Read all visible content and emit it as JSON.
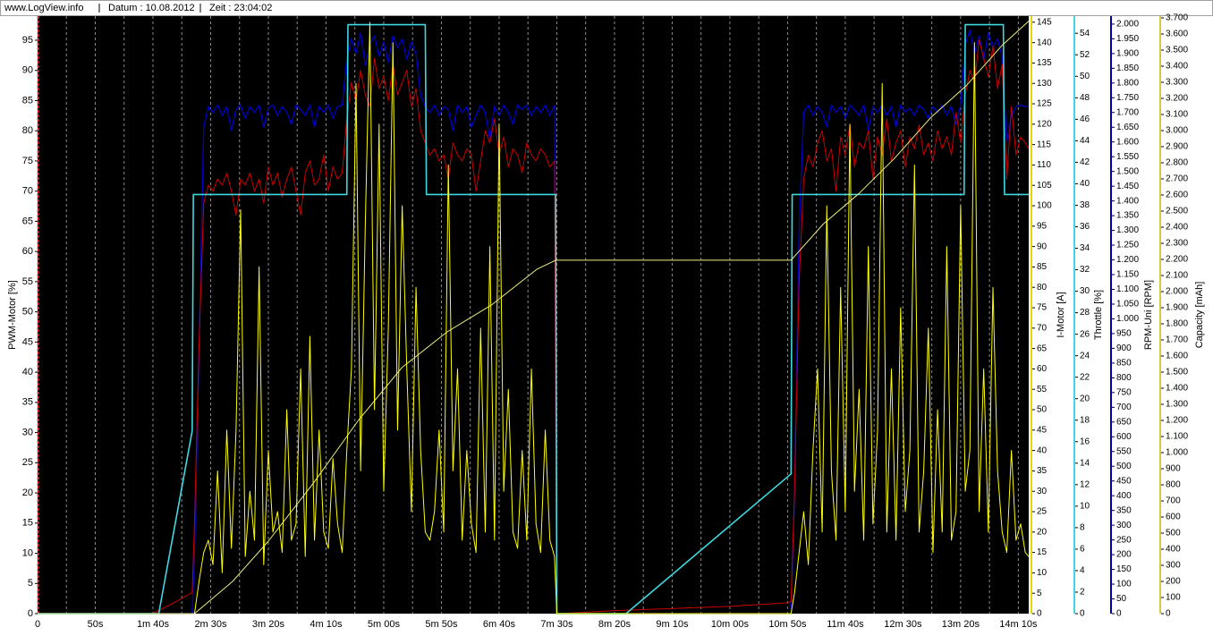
{
  "header": {
    "site": "www.LogView.info",
    "date": "Datum : 10.08.2012",
    "time": "Zeit : 23:04:02"
  },
  "chart_data": {
    "type": "line",
    "grid": true,
    "xlim": [
      0,
      859
    ],
    "xticks": [
      0,
      {
        "value": 50,
        "label": "50s"
      },
      {
        "value": 100,
        "label": "1m 40s"
      },
      {
        "value": 150,
        "label": "2m 30s"
      },
      {
        "value": 200,
        "label": "3m 20s"
      },
      {
        "value": 250,
        "label": "4m 10s"
      },
      {
        "value": 300,
        "label": "5m 00s"
      },
      {
        "value": 350,
        "label": "5m 50s"
      },
      {
        "value": 400,
        "label": "6m 40s"
      },
      {
        "value": 450,
        "label": "7m 30s"
      },
      {
        "value": 500,
        "label": "8m 20s"
      },
      {
        "value": 550,
        "label": "9m 10s"
      },
      {
        "value": 600,
        "label": "10m 00s"
      },
      {
        "value": 650,
        "label": "10m 50s"
      },
      {
        "value": 700,
        "label": "11m 40s"
      },
      {
        "value": 750,
        "label": "12m 30s"
      },
      {
        "value": 800,
        "label": "13m 20s"
      },
      {
        "value": 850,
        "label": "14m 10s"
      }
    ],
    "x_minor_grid": [
      25,
      75,
      125,
      175,
      225,
      275,
      325,
      375,
      425,
      475,
      525,
      575,
      625,
      675,
      725,
      775,
      825
    ],
    "y_axes": [
      {
        "label": "PWM-Motor [%]",
        "side": "left",
        "color": "#cc0000",
        "lim": [
          0,
          99
        ],
        "ticks": [
          0,
          5,
          10,
          15,
          20,
          25,
          30,
          35,
          40,
          45,
          50,
          55,
          60,
          65,
          70,
          75,
          80,
          85,
          90,
          95
        ]
      },
      {
        "label": "I-Motor [A]",
        "side": "right",
        "color": "#e8d800",
        "lim": [
          0,
          146.5
        ],
        "ticks": [
          0,
          5,
          10,
          15,
          20,
          25,
          30,
          35,
          40,
          45,
          50,
          55,
          60,
          65,
          70,
          75,
          80,
          85,
          90,
          95,
          100,
          105,
          110,
          115,
          120,
          125,
          130,
          135,
          140,
          145
        ]
      },
      {
        "label": "Throttle [%]",
        "side": "right",
        "color": "#40d8e0",
        "lim": [
          0,
          55.6
        ],
        "ticks": [
          0,
          2,
          4,
          6,
          8,
          10,
          12,
          14,
          16,
          18,
          20,
          22,
          24,
          26,
          28,
          30,
          32,
          34,
          36,
          38,
          40,
          42,
          44,
          46,
          48,
          50,
          52,
          54
        ]
      },
      {
        "label": "RPM-Uni [RPM]",
        "side": "right",
        "color": "#0000b0",
        "lim": [
          0,
          2027
        ],
        "ticks": [
          0,
          50,
          100,
          150,
          200,
          250,
          300,
          350,
          400,
          450,
          500,
          550,
          600,
          650,
          700,
          750,
          800,
          850,
          900,
          950,
          {
            "value": 1000,
            "label": "1.000"
          },
          {
            "value": 1050,
            "label": "1.050"
          },
          {
            "value": 1100,
            "label": "1.100"
          },
          {
            "value": 1150,
            "label": "1.150"
          },
          {
            "value": 1200,
            "label": "1.200"
          },
          {
            "value": 1250,
            "label": "1.250"
          },
          {
            "value": 1300,
            "label": "1.300"
          },
          {
            "value": 1350,
            "label": "1.350"
          },
          {
            "value": 1400,
            "label": "1.400"
          },
          {
            "value": 1450,
            "label": "1.450"
          },
          {
            "value": 1500,
            "label": "1.500"
          },
          {
            "value": 1550,
            "label": "1.550"
          },
          {
            "value": 1600,
            "label": "1.600"
          },
          {
            "value": 1650,
            "label": "1.650"
          },
          {
            "value": 1700,
            "label": "1.700"
          },
          {
            "value": 1750,
            "label": "1.750"
          },
          {
            "value": 1800,
            "label": "1.800"
          },
          {
            "value": 1850,
            "label": "1.850"
          },
          {
            "value": 1900,
            "label": "1.900"
          },
          {
            "value": 1950,
            "label": "1.950"
          },
          {
            "value": 2000,
            "label": "2.000"
          }
        ]
      },
      {
        "label": "Capacity [mAh]",
        "side": "right",
        "color": "#d8c840",
        "lim": [
          0,
          3711
        ],
        "ticks": [
          0,
          100,
          200,
          300,
          400,
          500,
          600,
          700,
          800,
          900,
          {
            "value": 1000,
            "label": "1.000"
          },
          {
            "value": 1100,
            "label": "1.100"
          },
          {
            "value": 1200,
            "label": "1.200"
          },
          {
            "value": 1300,
            "label": "1.300"
          },
          {
            "value": 1400,
            "label": "1.400"
          },
          {
            "value": 1500,
            "label": "1.500"
          },
          {
            "value": 1600,
            "label": "1.600"
          },
          {
            "value": 1700,
            "label": "1.700"
          },
          {
            "value": 1800,
            "label": "1.800"
          },
          {
            "value": 1900,
            "label": "1.900"
          },
          {
            "value": 2000,
            "label": "2.000"
          },
          {
            "value": 2100,
            "label": "2.100"
          },
          {
            "value": 2200,
            "label": "2.200"
          },
          {
            "value": 2300,
            "label": "2.300"
          },
          {
            "value": 2400,
            "label": "2.400"
          },
          {
            "value": 2500,
            "label": "2.500"
          },
          {
            "value": 2600,
            "label": "2.600"
          },
          {
            "value": 2700,
            "label": "2.700"
          },
          {
            "value": 2800,
            "label": "2.800"
          },
          {
            "value": 2900,
            "label": "2.900"
          },
          {
            "value": 3000,
            "label": "3.000"
          },
          {
            "value": 3100,
            "label": "3.100"
          },
          {
            "value": 3200,
            "label": "3.200"
          },
          {
            "value": 3300,
            "label": "3.300"
          },
          {
            "value": 3400,
            "label": "3.400"
          },
          {
            "value": 3500,
            "label": "3.500"
          },
          {
            "value": 3600,
            "label": "3.600"
          },
          {
            "value": 3700,
            "label": "3.700"
          }
        ]
      }
    ],
    "x": [
      0,
      100,
      105,
      120,
      134,
      136,
      140,
      144,
      148,
      152,
      156,
      160,
      164,
      168,
      172,
      176,
      180,
      184,
      188,
      192,
      196,
      200,
      204,
      208,
      212,
      216,
      220,
      224,
      228,
      232,
      236,
      240,
      244,
      248,
      252,
      256,
      260,
      264,
      268,
      272,
      276,
      280,
      284,
      288,
      292,
      296,
      300,
      304,
      308,
      312,
      316,
      320,
      324,
      328,
      332,
      336,
      340,
      344,
      348,
      352,
      356,
      360,
      364,
      368,
      372,
      376,
      380,
      384,
      388,
      392,
      396,
      400,
      404,
      408,
      412,
      416,
      420,
      424,
      428,
      432,
      436,
      440,
      444,
      448,
      450,
      452,
      500,
      600,
      650,
      653,
      656,
      660,
      664,
      668,
      672,
      676,
      680,
      684,
      688,
      692,
      696,
      700,
      704,
      708,
      712,
      716,
      720,
      724,
      728,
      732,
      736,
      740,
      744,
      748,
      752,
      756,
      760,
      764,
      768,
      772,
      776,
      780,
      784,
      788,
      792,
      796,
      800,
      804,
      808,
      812,
      816,
      820,
      824,
      828,
      832,
      836,
      840,
      844,
      848,
      852,
      856,
      859
    ],
    "series": [
      {
        "axis": 3,
        "color": "#0000c8",
        "values": [
          0,
          0,
          0,
          0,
          0,
          200,
          900,
          1650,
          1720,
          1700,
          1725,
          1690,
          1720,
          1640,
          1710,
          1725,
          1680,
          1720,
          1700,
          1725,
          1650,
          1715,
          1725,
          1690,
          1720,
          1700,
          1660,
          1725,
          1710,
          1690,
          1725,
          1650,
          1720,
          1700,
          1725,
          1680,
          1720,
          1725,
          1880,
          1950,
          1900,
          1970,
          1860,
          1930,
          1960,
          1890,
          1940,
          1870,
          1960,
          1920,
          1950,
          1880,
          1940,
          1900,
          1760,
          1720,
          1700,
          1725,
          1690,
          1720,
          1710,
          1640,
          1725,
          1700,
          1720,
          1650,
          1690,
          1725,
          1700,
          1610,
          1720,
          1690,
          1725,
          1700,
          1660,
          1725,
          1710,
          1725,
          1690,
          1720,
          1700,
          1725,
          1690,
          1725,
          0,
          0,
          0,
          0,
          0,
          0,
          400,
          1300,
          1700,
          1725,
          1690,
          1720,
          1700,
          1650,
          1725,
          1700,
          1720,
          1680,
          1725,
          1710,
          1690,
          1725,
          1640,
          1720,
          1700,
          1725,
          1690,
          1720,
          1650,
          1725,
          1700,
          1715,
          1690,
          1725,
          1710,
          1680,
          1720,
          1700,
          1725,
          1690,
          1720,
          1660,
          1725,
          1930,
          1980,
          1900,
          1960,
          1880,
          1970,
          1920,
          1950,
          1890,
          1600,
          1690,
          1720,
          1725,
          1720,
          1720
        ]
      },
      {
        "axis": 0,
        "color": "#cc0000",
        "values": [
          0,
          0,
          0.5,
          2,
          3.5,
          15,
          45,
          68,
          71,
          70,
          72,
          71,
          73,
          70,
          66,
          72,
          71,
          73,
          70,
          72,
          68,
          74,
          71,
          73,
          69,
          72,
          74,
          70,
          66,
          73,
          75,
          71,
          72,
          76,
          70,
          74,
          72,
          73,
          82,
          88,
          85,
          90,
          86,
          84,
          92,
          87,
          89,
          85,
          91,
          86,
          88,
          90,
          84,
          87,
          80,
          78,
          76,
          77,
          75,
          76,
          72,
          78,
          76,
          75,
          77,
          76,
          70,
          75,
          80,
          78,
          82,
          76,
          79,
          74,
          77,
          76,
          73,
          78,
          76,
          75,
          77,
          76,
          74,
          75,
          0,
          0,
          0.5,
          1.2,
          1.8,
          2,
          20,
          55,
          72,
          76,
          74,
          78,
          80,
          75,
          77,
          70,
          79,
          76,
          81,
          74,
          78,
          77,
          80,
          72,
          79,
          76,
          82,
          75,
          78,
          80,
          74,
          79,
          77,
          81,
          76,
          78,
          75,
          80,
          77,
          79,
          76,
          83,
          78,
          86,
          90,
          88,
          95,
          92,
          89,
          94,
          87,
          91,
          72,
          84,
          76,
          79,
          78,
          77
        ]
      },
      {
        "axis": 2,
        "color": "#40d8e0",
        "x": [
          0,
          105,
          134,
          135,
          268,
          269,
          336,
          337,
          449,
          450,
          510,
          653,
          654,
          803,
          804,
          837,
          838,
          859
        ],
        "values": [
          0,
          0,
          17,
          39,
          39,
          54.8,
          54.8,
          39,
          39,
          0,
          0,
          13,
          39,
          39,
          54.8,
          54.8,
          39,
          39
        ]
      },
      {
        "axis": 1,
        "color": "#ffff00",
        "values": [
          0,
          0,
          0,
          0,
          0,
          0,
          8,
          15,
          18,
          12,
          35,
          10,
          45,
          16,
          45,
          99,
          14,
          30,
          18,
          85,
          12,
          40,
          20,
          25,
          15,
          50,
          18,
          22,
          60,
          14,
          68,
          18,
          45,
          20,
          16,
          38,
          22,
          15,
          40,
          60,
          130,
          35,
          95,
          145,
          50,
          120,
          30,
          70,
          140,
          45,
          100,
          60,
          25,
          80,
          40,
          20,
          18,
          25,
          45,
          20,
          110,
          35,
          60,
          18,
          40,
          22,
          15,
          70,
          20,
          90,
          18,
          120,
          30,
          55,
          20,
          16,
          40,
          18,
          60,
          22,
          15,
          45,
          18,
          14,
          0,
          0,
          0,
          0,
          0,
          0,
          5,
          15,
          25,
          12,
          40,
          60,
          20,
          100,
          35,
          18,
          80,
          25,
          120,
          30,
          55,
          18,
          90,
          22,
          45,
          130,
          20,
          60,
          18,
          75,
          25,
          40,
          110,
          20,
          35,
          70,
          15,
          50,
          20,
          90,
          18,
          25,
          100,
          30,
          40,
          140,
          25,
          60,
          20,
          80,
          35,
          20,
          15,
          40,
          18,
          22,
          15,
          14
        ]
      },
      {
        "axis": 4,
        "color": "#f0f080",
        "x": [
          0,
          136,
          169,
          200,
          239,
          278,
          316,
          355,
          394,
          433,
          449,
          653,
          681,
          712,
          743,
          774,
          805,
          836,
          859
        ],
        "values": [
          0,
          0,
          200,
          450,
          810,
          1200,
          1530,
          1750,
          1920,
          2140,
          2195,
          2195,
          2420,
          2610,
          2830,
          3080,
          3280,
          3530,
          3680
        ]
      }
    ]
  }
}
